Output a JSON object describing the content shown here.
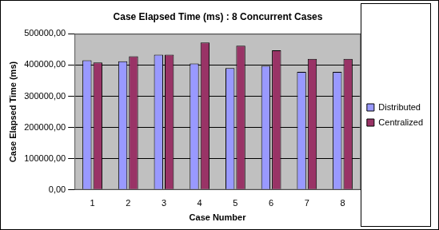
{
  "chart_data": {
    "type": "bar",
    "title": "Case Elapsed Time (ms) : 8 Concurrent Cases",
    "x_label": "Case Number",
    "y_label": "Case Elapsed Time (ms)",
    "categories": [
      "1",
      "2",
      "3",
      "4",
      "5",
      "6",
      "7",
      "8"
    ],
    "series": [
      {
        "name": "Distributed",
        "color": "#9999ff",
        "values": [
          415000,
          412000,
          433000,
          405000,
          390000,
          397000,
          378000,
          378000
        ]
      },
      {
        "name": "Centralized",
        "color": "#993366",
        "values": [
          408000,
          428000,
          433000,
          472000,
          462000,
          447000,
          420000,
          420000
        ]
      }
    ],
    "ylim": [
      0,
      500000
    ],
    "yticks": [
      {
        "value": 0,
        "label": "0,00"
      },
      {
        "value": 100000,
        "label": "100000,00"
      },
      {
        "value": 200000,
        "label": "200000,00"
      },
      {
        "value": 300000,
        "label": "300000,00"
      },
      {
        "value": 400000,
        "label": "400000,00"
      },
      {
        "value": 500000,
        "label": "500000,00"
      }
    ],
    "grid": true,
    "legend": "right"
  }
}
